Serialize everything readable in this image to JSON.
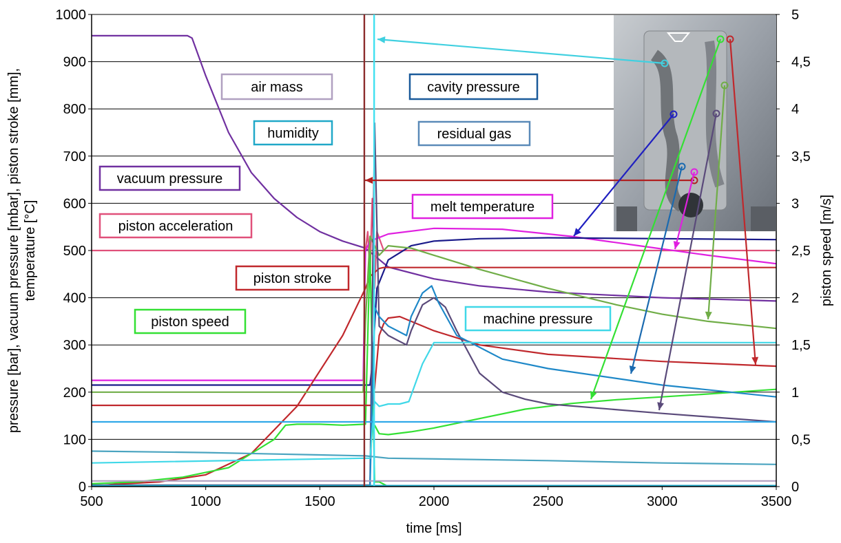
{
  "chart_data": {
    "type": "line",
    "xlabel": "time [ms]",
    "ylabel_left_lines": [
      "pressure [bar], vacuum pressure [mbar], piston stroke [mm],",
      "temperature [°C]"
    ],
    "ylabel_right": "piston speed [m/s]",
    "xlim": [
      500,
      3500
    ],
    "ylim_left": [
      0,
      1000
    ],
    "ylim_right": [
      0,
      5
    ],
    "x_ticks": [
      500,
      1000,
      1500,
      2000,
      2500,
      3000,
      3500
    ],
    "x_tick_labels": [
      "500",
      "1000",
      "1500",
      "2000",
      "2500",
      "3000",
      "3500"
    ],
    "y_left_ticks": [
      0,
      100,
      200,
      300,
      400,
      500,
      600,
      700,
      800,
      900,
      1000
    ],
    "y_left_tick_labels": [
      "0",
      "100",
      "200",
      "300",
      "400",
      "500",
      "600",
      "700",
      "800",
      "900",
      "1000"
    ],
    "y_right_ticks": [
      0,
      0.5,
      1,
      1.5,
      2,
      2.5,
      3,
      3.5,
      4,
      4.5,
      5
    ],
    "y_right_tick_labels": [
      "0",
      "0,5",
      "1",
      "1,5",
      "2",
      "2,5",
      "3",
      "3,5",
      "4",
      "4,5",
      "5"
    ],
    "grid": true,
    "series": [
      {
        "name": "vacuum pressure",
        "color": "#7030a0",
        "x": [
          500,
          920,
          940,
          1000,
          1100,
          1200,
          1300,
          1400,
          1500,
          1600,
          1700,
          1800,
          2000,
          2200,
          2500,
          3000,
          3500
        ],
        "y": [
          955,
          955,
          950,
          870,
          750,
          665,
          610,
          570,
          540,
          520,
          505,
          465,
          440,
          425,
          412,
          400,
          393
        ]
      },
      {
        "name": "piston acceleration",
        "color": "#e0507a",
        "x": [
          500,
          1700,
          1710,
          1720,
          1730,
          1740,
          1750,
          1780,
          3500
        ],
        "y": [
          500,
          500,
          540,
          450,
          610,
          420,
          540,
          500,
          500
        ]
      },
      {
        "name": "melt temperature",
        "color": "#e020e0",
        "x": [
          500,
          1690,
          1700,
          1720,
          1800,
          2000,
          2300,
          2600,
          2900,
          3200,
          3500
        ],
        "y": [
          225,
          225,
          500,
          520,
          535,
          547,
          545,
          530,
          510,
          490,
          472
        ]
      },
      {
        "name": "cavity pressure",
        "color": "#1a1a8a",
        "x": [
          500,
          1720,
          1730,
          1750,
          1800,
          1900,
          2000,
          2200,
          2500,
          3000,
          3500
        ],
        "y": [
          215,
          215,
          260,
          420,
          480,
          510,
          520,
          525,
          527,
          525,
          523
        ]
      },
      {
        "name": "piston stroke",
        "color": "#c0282c",
        "x": [
          500,
          600,
          800,
          1000,
          1200,
          1400,
          1600,
          1700,
          1720,
          1760,
          1780,
          1850,
          2500,
          3500
        ],
        "y": [
          0,
          5,
          10,
          25,
          70,
          170,
          320,
          420,
          445,
          462,
          464,
          464,
          464,
          464
        ]
      },
      {
        "name": "piston speed",
        "color": "#33e033",
        "x": [
          500,
          700,
          900,
          1100,
          1200,
          1300,
          1350,
          1400,
          1450,
          1500,
          1600,
          1700,
          1720,
          1740,
          1760,
          1800,
          1900,
          2000,
          2200,
          2500,
          3000,
          3500
        ],
        "y": [
          0.03,
          0.05,
          0.1,
          0.2,
          0.35,
          0.5,
          0.65,
          0.66,
          0.66,
          0.66,
          0.65,
          0.66,
          2.5,
          0.05,
          0.05,
          0,
          0,
          0,
          0,
          0,
          0,
          0
        ]
      },
      {
        "name": "piston speed (secondary)",
        "color": "#33e033",
        "x": [
          1740,
          1760,
          1800,
          1900,
          2000,
          2200,
          2400,
          2600,
          2800,
          3000,
          3200,
          3500
        ],
        "y": [
          0.65,
          0.56,
          0.55,
          0.58,
          0.62,
          0.72,
          0.82,
          0.88,
          0.92,
          0.95,
          0.98,
          1.03
        ]
      },
      {
        "name": "olive green trace",
        "color": "#70ad47",
        "x": [
          500,
          1690,
          1700,
          1720,
          1760,
          1800,
          1900,
          2000,
          2200,
          2500,
          2800,
          3000,
          3200,
          3500
        ],
        "y": [
          200,
          200,
          350,
          530,
          490,
          510,
          505,
          490,
          460,
          420,
          385,
          365,
          350,
          335
        ]
      },
      {
        "name": "piston stroke (lower)",
        "color": "#c0282c",
        "x": [
          500,
          1730,
          1740,
          1760,
          1780,
          1800,
          1850,
          1900,
          2000,
          2200,
          2500,
          3000,
          3500
        ],
        "y": [
          172,
          172,
          210,
          320,
          345,
          357,
          360,
          350,
          330,
          300,
          280,
          265,
          255
        ]
      },
      {
        "name": "residual gas",
        "color": "#5a4a7a",
        "x": [
          500,
          1720,
          1740,
          1760,
          1800,
          1880,
          1900,
          1950,
          2000,
          2050,
          2100,
          2200,
          2300,
          2400,
          2500,
          3000,
          3500
        ],
        "y": [
          3,
          3,
          770,
          340,
          320,
          300,
          330,
          385,
          400,
          380,
          330,
          240,
          200,
          185,
          175,
          155,
          137
        ]
      },
      {
        "name": "machine pressure",
        "color": "#1e88c8",
        "x": [
          500,
          1720,
          1740,
          1760,
          1800,
          1880,
          1900,
          1950,
          1990,
          2020,
          2100,
          2300,
          2500,
          3000,
          3500
        ],
        "y": [
          2,
          2,
          380,
          360,
          340,
          320,
          360,
          410,
          425,
          390,
          320,
          270,
          250,
          215,
          190
        ]
      },
      {
        "name": "cyan trace",
        "color": "#40d8e8",
        "x": [
          500,
          1700,
          1720,
          1740,
          1760,
          1800,
          1850,
          1890,
          1950,
          2000,
          2200,
          3000,
          3500
        ],
        "y": [
          50,
          60,
          60,
          180,
          170,
          175,
          175,
          180,
          260,
          305,
          305,
          305,
          305
        ]
      },
      {
        "name": "light blue trace",
        "color": "#30a8e8",
        "x": [
          500,
          3500
        ],
        "y": [
          137,
          137
        ]
      },
      {
        "name": "teal trace",
        "color": "#4aa4c0",
        "x": [
          500,
          1000,
          1500,
          1700,
          1800,
          2500,
          3000,
          3500
        ],
        "y": [
          75,
          72,
          67,
          65,
          60,
          55,
          50,
          47
        ]
      },
      {
        "name": "air mass",
        "color": "#b0a0c0",
        "x": [
          500,
          3500
        ],
        "y": [
          12,
          12
        ]
      },
      {
        "name": "humidity",
        "color": "#20a8c8",
        "x": [
          500,
          3500
        ],
        "y": [
          2,
          2
        ]
      }
    ],
    "verticals": [
      {
        "x": 1695,
        "color": "#8b2c2c"
      },
      {
        "x": 1738,
        "color": "#40e0f0"
      }
    ],
    "legend_boxes": [
      {
        "label": "air mass",
        "color": "#b0a0c0"
      },
      {
        "label": "humidity",
        "color": "#20a8c8"
      },
      {
        "label": "vacuum pressure",
        "color": "#7030a0"
      },
      {
        "label": "piston acceleration",
        "color": "#e0507a"
      },
      {
        "label": "piston stroke",
        "color": "#c0282c"
      },
      {
        "label": "piston speed",
        "color": "#33e033"
      },
      {
        "label": "cavity pressure",
        "color": "#1a5a9a"
      },
      {
        "label": "residual gas",
        "color": "#5a8ab8"
      },
      {
        "label": "melt temperature",
        "color": "#e020e0"
      },
      {
        "label": "machine pressure",
        "color": "#40d8e8"
      }
    ],
    "inset_photo": "die casting mold photo",
    "annotation_arrows": [
      {
        "color": "#40d0e0"
      },
      {
        "color": "#b02020"
      },
      {
        "color": "#2020c0"
      },
      {
        "color": "#1a6ab0"
      },
      {
        "color": "#e020e0"
      },
      {
        "color": "#5a4a7a"
      },
      {
        "color": "#70ad47"
      },
      {
        "color": "#33e033"
      },
      {
        "color": "#c0282c"
      }
    ]
  }
}
